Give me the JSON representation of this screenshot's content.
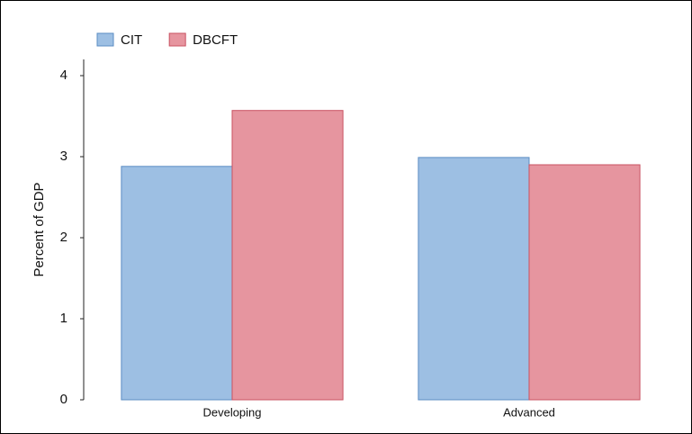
{
  "chart_data": {
    "type": "bar",
    "y_label": "Percent of GDP",
    "categories": [
      "Developing",
      "Advanced"
    ],
    "series": [
      {
        "name": "CIT",
        "color": "#9dbfe3",
        "edge": "#5b8cc3",
        "values": [
          2.88,
          2.99
        ]
      },
      {
        "name": "DBCFT",
        "color": "#e6959f",
        "edge": "#c95262",
        "values": [
          3.57,
          2.9
        ]
      }
    ],
    "ylim": [
      0,
      4.2
    ],
    "yticks": [
      0,
      1,
      2,
      3,
      4
    ],
    "grid": false,
    "legend": "top-left"
  }
}
